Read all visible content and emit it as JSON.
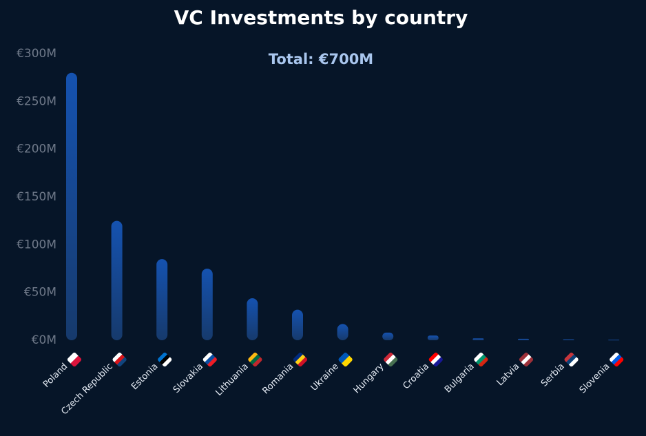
{
  "chart_data": {
    "type": "bar",
    "title": "VC Investments by country",
    "subtitle": "Total: €700M",
    "categories": [
      "Poland",
      "Czech Republic",
      "Estonia",
      "Slovakia",
      "Lithuania",
      "Romania",
      "Ukraine",
      "Hungary",
      "Croatia",
      "Bulgaria",
      "Latvia",
      "Serbia",
      "Slovenia"
    ],
    "values": [
      280,
      125,
      85,
      75,
      44,
      32,
      17,
      8,
      5,
      2,
      1.5,
      1,
      0.5
    ],
    "color": "#1552b0",
    "ylim": [
      0,
      300
    ],
    "yticks": [
      {
        "value": 0,
        "label": "€0M"
      },
      {
        "value": 50,
        "label": "€50M"
      },
      {
        "value": 100,
        "label": "€100M"
      },
      {
        "value": 150,
        "label": "€150M"
      },
      {
        "value": 200,
        "label": "€200M"
      },
      {
        "value": 250,
        "label": "€250M"
      },
      {
        "value": 300,
        "label": "€300M"
      }
    ],
    "grid": false
  }
}
